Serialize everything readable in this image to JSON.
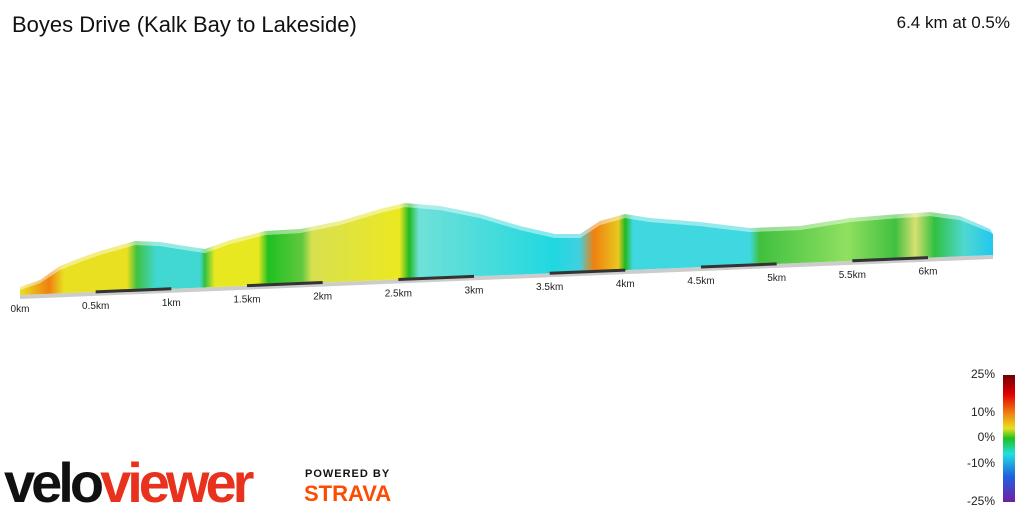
{
  "header": {
    "title": "Boyes Drive (Kalk Bay to Lakeside)",
    "summary": "6.4 km at 0.5%"
  },
  "profile": {
    "distance_labels": [
      "0km",
      "0.5km",
      "1km",
      "1.5km",
      "2km",
      "2.5km",
      "3km",
      "3.5km",
      "4km",
      "4.5km",
      "5km",
      "5.5km",
      "6km"
    ]
  },
  "legend": {
    "labels": [
      "25%",
      "10%",
      "0%",
      "-10%",
      "-25%"
    ]
  },
  "brand": {
    "logo_a": "velo",
    "logo_b": "viewer",
    "powered": "POWERED BY",
    "strava": "STRAVA"
  }
}
